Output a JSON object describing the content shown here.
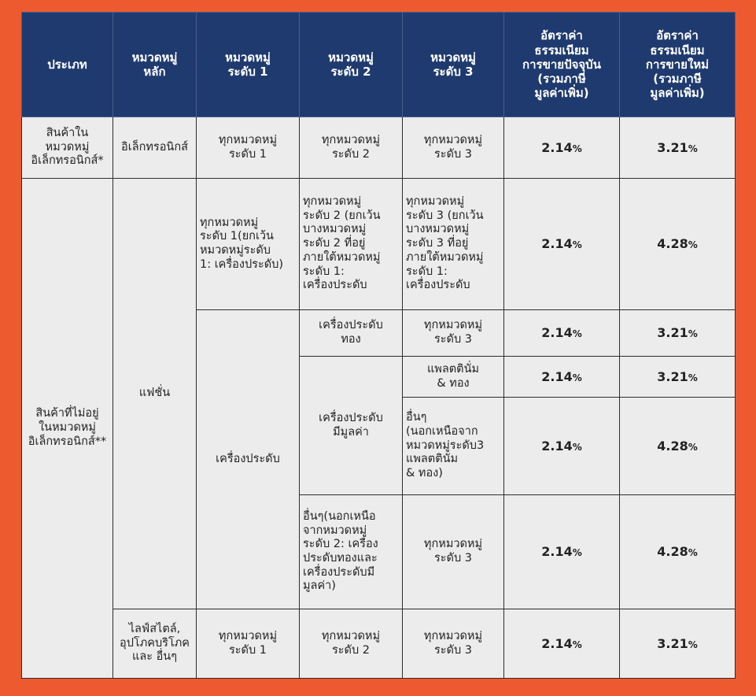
{
  "header": {
    "type": "ประเภท",
    "main_category": "หมวดหมู่\nหลัก",
    "level1": "หมวดหมู่\nระดับ 1",
    "level2": "หมวดหมู่\nระดับ 2",
    "level3": "หมวดหมู่\nระดับ 3",
    "current_rate": "อัตราค่า\nธรรมเนียม\nการขายปัจจุบัน\n(รวมภาษี\nมูลค่าเพิ่ม)",
    "new_rate": "อัตราค่า\nธรรมเนียม\nการขายใหม่\n(รวมภาษี\nมูลค่าเพิ่ม)"
  },
  "types": {
    "electronics": "สินค้าใน\nหมวดหมู่\nอิเล็กทรอนิกส์*",
    "non_electronics": "สินค้าที่ไม่อยู่\nในหมวดหมู่\nอิเล็กทรอนิกส์**"
  },
  "main": {
    "electronics": "อิเล็กทรอนิกส์",
    "fashion": "แฟชั่น",
    "lifestyle": "ไลฟ์สไตล์,\nอุปโภคบริโภค\nและ อื่นๆ"
  },
  "cells": {
    "all_l1": "ทุกหมวดหมู่\nระดับ 1",
    "all_l2": "ทุกหมวดหมู่\nระดับ 2",
    "all_l3": "ทุกหมวดหมู่\nระดับ 3",
    "fashion_l1_except": "ทุกหมวดหมู่\nระดับ 1(ยกเว้น\nหมวดหมู่ระดับ\n1: เครื่องประดับ)",
    "fashion_l2_except": "ทุกหมวดหมู่\nระดับ 2 (ยกเว้น\nบางหมวดหมู่\nระดับ 2 ที่อยู่\nภายใต้หมวดหมู่\nระดับ 1:\nเครื่องประดับ",
    "fashion_l3_except": "ทุกหมวดหมู่\nระดับ 3 (ยกเว้น\nบางหมวดหมู่\nระดับ 3 ที่อยู่\nภายใต้หมวดหมู่\nระดับ 1:\nเครื่องประดับ",
    "jewelry": "เครื่องประดับ",
    "gold_jewelry": "เครื่องประดับ\nทอง",
    "valuable_jewelry": "เครื่องประดับ\nมีมูลค่า",
    "platinum_gold": "แพลตตินั่ม\n& ทอง",
    "others_l3": "อื่นๆ\n(นอกเหนือจาก\nหมวดหมู่ระดับ3\nแพลตตินั่ม\n& ทอง)",
    "others_l2": "อื่นๆ(นอกเหนือ\nจากหมวดหมู่\nระดับ 2: เครื่อง\nประดับทองและ\nเครื่องประดับมี\nมูลค่า)"
  },
  "rates": {
    "current": [
      "2.14",
      "2.14",
      "2.14",
      "2.14",
      "2.14",
      "2.14",
      "2.14"
    ],
    "new": [
      "3.21",
      "4.28",
      "3.21",
      "3.21",
      "4.28",
      "4.28",
      "3.21"
    ],
    "unit": "%"
  }
}
